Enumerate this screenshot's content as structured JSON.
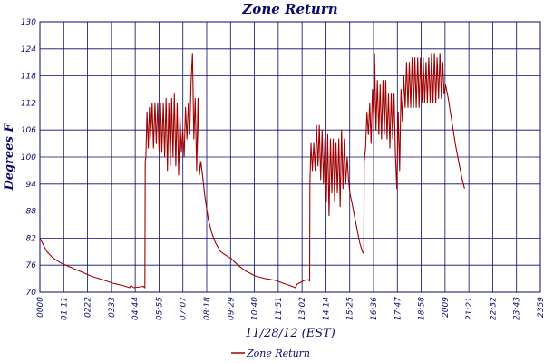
{
  "chart_data": {
    "type": "line",
    "title": "Zone Return",
    "xlabel": "11/28/12 (EST)",
    "ylabel": "Degrees F",
    "ylim": [
      70,
      130
    ],
    "yticks": [
      70,
      76,
      82,
      88,
      94,
      100,
      106,
      112,
      118,
      124,
      130
    ],
    "xlim": [
      0,
      1440
    ],
    "xtick_labels": [
      "0000",
      "01:11",
      "0222",
      "0333",
      "04:44",
      "05:55",
      "07:07",
      "08:18",
      "09:29",
      "10:40",
      "11:51",
      "13:02",
      "14:14",
      "15:25",
      "16:36",
      "17:47",
      "18:58",
      "2009",
      "21:21",
      "22:32",
      "23:43",
      "2359"
    ],
    "grid": true,
    "legend_position": "bottom-center",
    "colors": {
      "line": "#a00000",
      "grid": "#0a0a6e",
      "text": "#0a0a6e"
    },
    "series": [
      {
        "name": "Zone Return",
        "points": [
          [
            0,
            82
          ],
          [
            10,
            80.5
          ],
          [
            20,
            79
          ],
          [
            35,
            77.8
          ],
          [
            45,
            77.2
          ],
          [
            60,
            76.5
          ],
          [
            90,
            75.5
          ],
          [
            120,
            74.5
          ],
          [
            150,
            73.5
          ],
          [
            180,
            72.8
          ],
          [
            210,
            72
          ],
          [
            240,
            71.5
          ],
          [
            258,
            71
          ],
          [
            262,
            71.5
          ],
          [
            270,
            71
          ],
          [
            290,
            71.2
          ],
          [
            297,
            71.3
          ],
          [
            302,
            71
          ],
          [
            303,
            99
          ],
          [
            305,
            100
          ],
          [
            308,
            110
          ],
          [
            312,
            102
          ],
          [
            315,
            111
          ],
          [
            319,
            104
          ],
          [
            323,
            112
          ],
          [
            327,
            102
          ],
          [
            331,
            112
          ],
          [
            335,
            103
          ],
          [
            339,
            112
          ],
          [
            343,
            101
          ],
          [
            347,
            112
          ],
          [
            351,
            101
          ],
          [
            355,
            112
          ],
          [
            359,
            100
          ],
          [
            363,
            113
          ],
          [
            367,
            97
          ],
          [
            371,
            112
          ],
          [
            375,
            98
          ],
          [
            379,
            113
          ],
          [
            383,
            100
          ],
          [
            387,
            114
          ],
          [
            391,
            98
          ],
          [
            395,
            112
          ],
          [
            399,
            96
          ],
          [
            403,
            109
          ],
          [
            407,
            101
          ],
          [
            411,
            106
          ],
          [
            415,
            100
          ],
          [
            419,
            111
          ],
          [
            423,
            104
          ],
          [
            427,
            112
          ],
          [
            431,
            105
          ],
          [
            435,
            117
          ],
          [
            439,
            123
          ],
          [
            443,
            104
          ],
          [
            447,
            113
          ],
          [
            451,
            97
          ],
          [
            455,
            113
          ],
          [
            459,
            96
          ],
          [
            463,
            99
          ],
          [
            468,
            96
          ],
          [
            475,
            91
          ],
          [
            485,
            86
          ],
          [
            495,
            83
          ],
          [
            505,
            81
          ],
          [
            520,
            79
          ],
          [
            535,
            78.2
          ],
          [
            550,
            77.5
          ],
          [
            570,
            76
          ],
          [
            590,
            74.8
          ],
          [
            620,
            73.6
          ],
          [
            650,
            73
          ],
          [
            680,
            72.6
          ],
          [
            700,
            72
          ],
          [
            720,
            71.5
          ],
          [
            735,
            71
          ],
          [
            740,
            71.8
          ],
          [
            750,
            72.2
          ],
          [
            760,
            72.6
          ],
          [
            772,
            72.8
          ],
          [
            776,
            72.5
          ],
          [
            777,
            94
          ],
          [
            780,
            103
          ],
          [
            784,
            97
          ],
          [
            788,
            103
          ],
          [
            792,
            97
          ],
          [
            796,
            107
          ],
          [
            800,
            98
          ],
          [
            804,
            107
          ],
          [
            808,
            95
          ],
          [
            812,
            106
          ],
          [
            816,
            94
          ],
          [
            820,
            104
          ],
          [
            824,
            90
          ],
          [
            828,
            105
          ],
          [
            832,
            87
          ],
          [
            836,
            104
          ],
          [
            840,
            92
          ],
          [
            844,
            104
          ],
          [
            848,
            90
          ],
          [
            852,
            103
          ],
          [
            856,
            92
          ],
          [
            860,
            104
          ],
          [
            864,
            89
          ],
          [
            868,
            106
          ],
          [
            872,
            93
          ],
          [
            876,
            104
          ],
          [
            880,
            94
          ],
          [
            884,
            100
          ],
          [
            888,
            95
          ],
          [
            892,
            92
          ],
          [
            900,
            89
          ],
          [
            910,
            85
          ],
          [
            920,
            81
          ],
          [
            928,
            79
          ],
          [
            932,
            78.5
          ],
          [
            933,
            99
          ],
          [
            937,
            102
          ],
          [
            941,
            110
          ],
          [
            945,
            105
          ],
          [
            949,
            112
          ],
          [
            953,
            103
          ],
          [
            957,
            115
          ],
          [
            961,
            107
          ],
          [
            963,
            123
          ],
          [
            967,
            106
          ],
          [
            971,
            117
          ],
          [
            975,
            105
          ],
          [
            979,
            116
          ],
          [
            983,
            104
          ],
          [
            987,
            117
          ],
          [
            991,
            105
          ],
          [
            995,
            117
          ],
          [
            999,
            104
          ],
          [
            1003,
            114
          ],
          [
            1007,
            102
          ],
          [
            1011,
            114
          ],
          [
            1015,
            104
          ],
          [
            1019,
            114
          ],
          [
            1023,
            100
          ],
          [
            1027,
            93
          ],
          [
            1031,
            110
          ],
          [
            1035,
            97
          ],
          [
            1039,
            115
          ],
          [
            1043,
            108
          ],
          [
            1047,
            118
          ],
          [
            1051,
            111
          ],
          [
            1055,
            121
          ],
          [
            1059,
            111
          ],
          [
            1063,
            121
          ],
          [
            1067,
            111
          ],
          [
            1071,
            122
          ],
          [
            1075,
            111
          ],
          [
            1079,
            122
          ],
          [
            1083,
            111
          ],
          [
            1087,
            122
          ],
          [
            1091,
            111
          ],
          [
            1095,
            122
          ],
          [
            1099,
            112
          ],
          [
            1103,
            122
          ],
          [
            1107,
            112
          ],
          [
            1111,
            121
          ],
          [
            1115,
            112
          ],
          [
            1119,
            122
          ],
          [
            1123,
            112
          ],
          [
            1127,
            123
          ],
          [
            1131,
            112
          ],
          [
            1135,
            123
          ],
          [
            1139,
            112
          ],
          [
            1143,
            122
          ],
          [
            1147,
            113
          ],
          [
            1151,
            123
          ],
          [
            1155,
            113
          ],
          [
            1159,
            121
          ],
          [
            1163,
            114
          ],
          [
            1167,
            116
          ],
          [
            1175,
            113
          ],
          [
            1185,
            108
          ],
          [
            1195,
            103
          ],
          [
            1205,
            99
          ],
          [
            1215,
            95
          ],
          [
            1222,
            93
          ]
        ]
      }
    ]
  }
}
